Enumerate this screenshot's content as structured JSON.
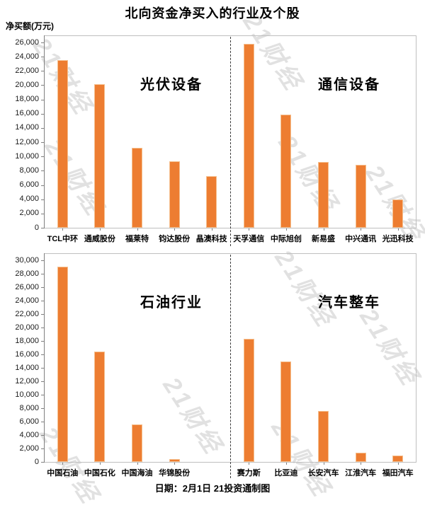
{
  "title": "北向资金净买入的行业及个股",
  "ylabel": "净买额(万元)",
  "footer": "日期：2月1日 21投资通制图",
  "watermark_text": "21财经",
  "colors": {
    "bar": "#ED7D31",
    "bar_edge": "#F5C08F",
    "frame": "#BFBFBF",
    "axis": "#808080",
    "divider": "#3A3A3A"
  },
  "chart_data": [
    {
      "type": "bar",
      "panel": "top",
      "ylim": [
        0,
        26000
      ],
      "ytick_step": 2000,
      "grid": false,
      "legend": "none",
      "sections": [
        {
          "label": "光伏设备",
          "categories": [
            "TCL中环",
            "通威股份",
            "福莱特",
            "钧达股份",
            "晶澳科技"
          ],
          "values": [
            23500,
            20100,
            11200,
            9300,
            7200
          ]
        },
        {
          "label": "通信设备",
          "categories": [
            "天孚通信",
            "中际旭创",
            "新易盛",
            "中兴通讯",
            "光迅科技"
          ],
          "values": [
            25800,
            15900,
            9200,
            8800,
            4000
          ]
        }
      ]
    },
    {
      "type": "bar",
      "panel": "bottom",
      "ylim": [
        0,
        30000
      ],
      "ytick_step": 2000,
      "grid": false,
      "legend": "none",
      "sections": [
        {
          "label": "石油行业",
          "categories": [
            "中国石油",
            "中国石化",
            "中国海油",
            "华锦股份"
          ],
          "values": [
            29100,
            16400,
            5600,
            400
          ]
        },
        {
          "label": "汽车整车",
          "categories": [
            "赛力斯",
            "比亚迪",
            "长安汽车",
            "江淮汽车",
            "福田汽车"
          ],
          "values": [
            18300,
            15000,
            7600,
            1400,
            1000
          ]
        }
      ]
    }
  ]
}
